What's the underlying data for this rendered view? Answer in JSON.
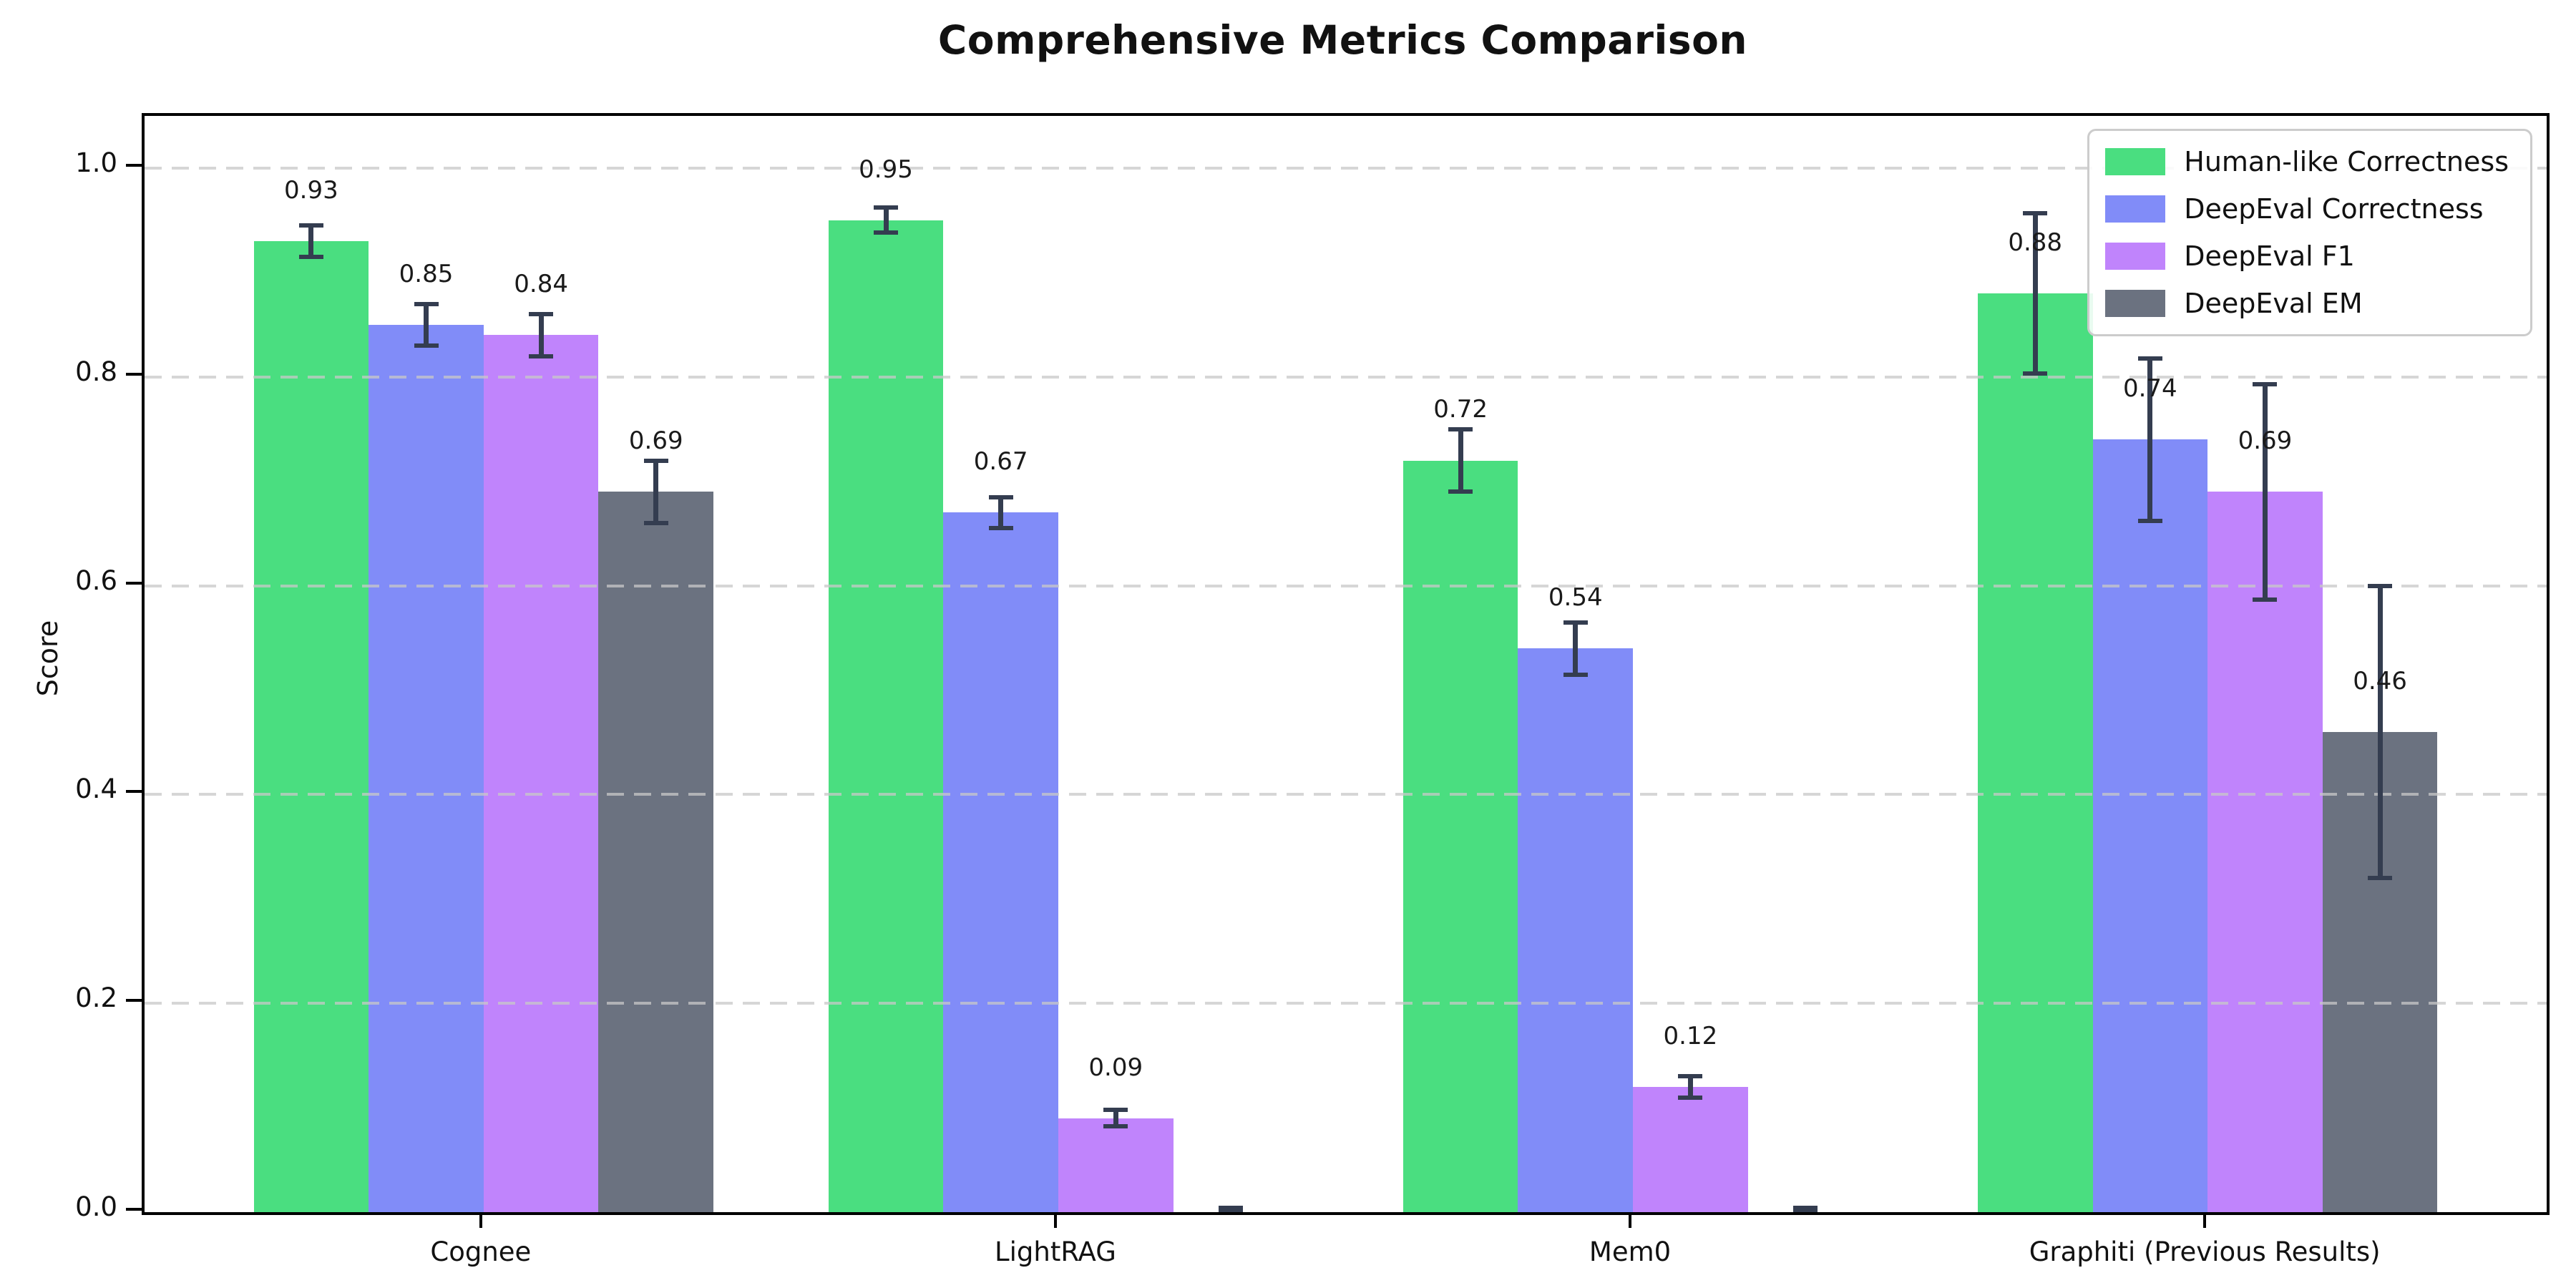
{
  "title": "Comprehensive Metrics Comparison",
  "chart_data": {
    "type": "bar",
    "title": "Comprehensive Metrics Comparison",
    "xlabel": "",
    "ylabel": "Score",
    "categories": [
      "Cognee",
      "LightRAG",
      "Mem0",
      "Graphiti (Previous Results)"
    ],
    "series": [
      {
        "name": "Human-like Correctness",
        "color": "#4ade80",
        "values": [
          0.93,
          0.95,
          0.72,
          0.88
        ],
        "errors": [
          0.015,
          0.012,
          0.03,
          0.077
        ],
        "labels": [
          "0.93",
          "0.95",
          "0.72",
          "0.88"
        ]
      },
      {
        "name": "DeepEval Correctness",
        "color": "#818cf8",
        "values": [
          0.85,
          0.67,
          0.54,
          0.74
        ],
        "errors": [
          0.02,
          0.015,
          0.025,
          0.078
        ],
        "labels": [
          "0.85",
          "0.67",
          "0.54",
          "0.74"
        ]
      },
      {
        "name": "DeepEval F1",
        "color": "#c084fc",
        "values": [
          0.84,
          0.09,
          0.12,
          0.69
        ],
        "errors": [
          0.02,
          0.008,
          0.01,
          0.103
        ],
        "labels": [
          "0.84",
          "0.09",
          "0.12",
          "0.69"
        ]
      },
      {
        "name": "DeepEval EM",
        "color": "#6b7280",
        "values": [
          0.69,
          0.0,
          0.0,
          0.46
        ],
        "errors": [
          0.03,
          0.004,
          0.004,
          0.14
        ],
        "labels": [
          "0.69",
          null,
          null,
          "0.46"
        ]
      }
    ],
    "yticks": [
      "0.0",
      "0.2",
      "0.4",
      "0.6",
      "0.8",
      "1.0"
    ],
    "ylim": [
      0,
      1.05
    ],
    "grid": "horizontal-dashed",
    "legend_position": "upper right",
    "errorbar_color": "#343d50"
  }
}
